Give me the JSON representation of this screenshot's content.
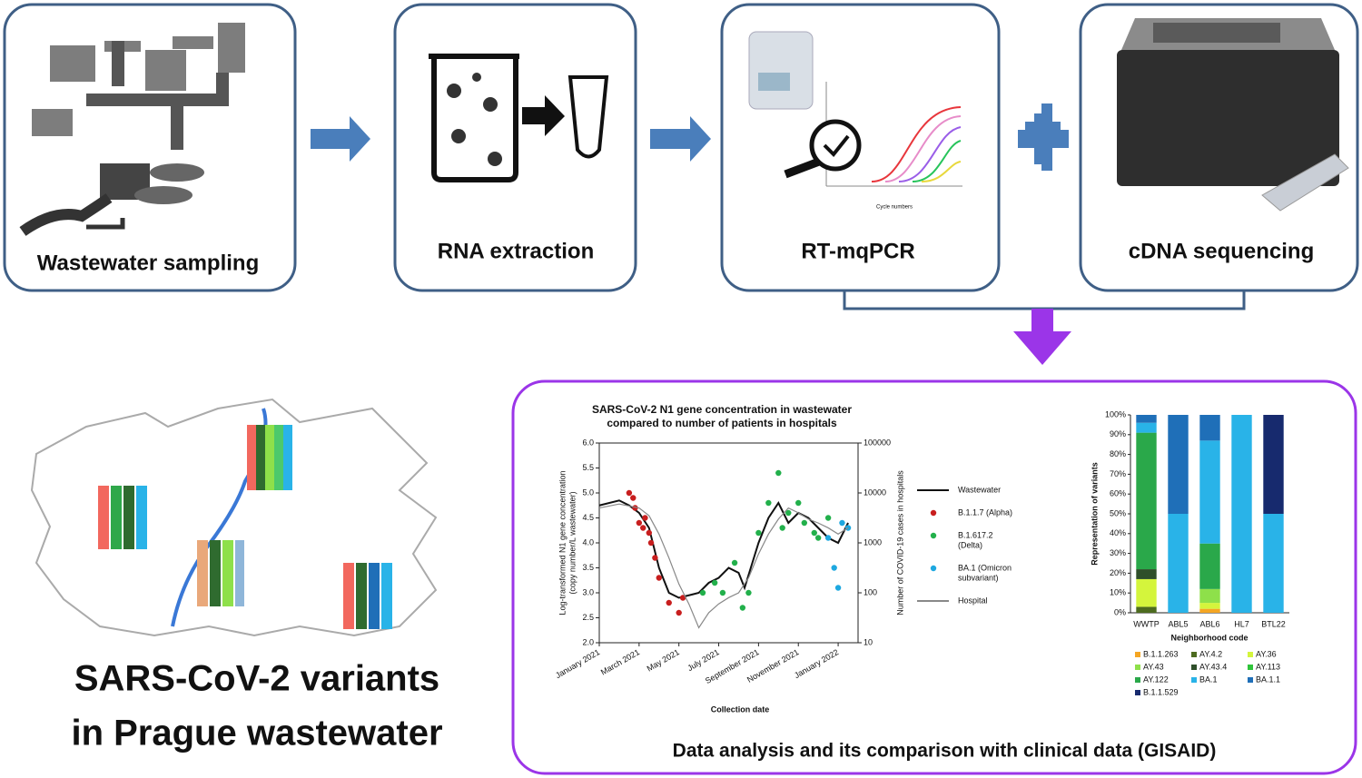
{
  "steps": [
    {
      "label": "Wastewater sampling"
    },
    {
      "label": "RNA extraction"
    },
    {
      "label": "RT-mqPCR"
    },
    {
      "label": "cDNA sequencing"
    }
  ],
  "qpcr_icon": {
    "x_label": "Cycle numbers"
  },
  "map": {
    "title_lines": [
      "SARS-CoV-2 variants",
      "in Prague wastewater"
    ]
  },
  "analysis": {
    "caption": "Data analysis and its comparison with clinical data (GISAID)",
    "line_chart": {
      "title_lines": [
        "SARS-CoV-2  N1 gene concentration in wastewater",
        "compared to number of patients in hospitals"
      ],
      "ylabel_lines": [
        "Log-transformed N1 gene concentration",
        "(copy number/L wastewater)"
      ],
      "y2label": "Number of COVID-19 cases in hospitals",
      "xlabel": "Collection date",
      "xlim": [
        0,
        13
      ],
      "xticks": [
        {
          "value": 0,
          "label": "January 2021"
        },
        {
          "value": 2,
          "label": "March 2021"
        },
        {
          "value": 4,
          "label": "May 2021"
        },
        {
          "value": 6,
          "label": "July 2021"
        },
        {
          "value": 8,
          "label": "September 2021"
        },
        {
          "value": 10,
          "label": "November 2021"
        },
        {
          "value": 12,
          "label": "January 2022"
        }
      ],
      "ylim": [
        2,
        6
      ],
      "yticks": [
        {
          "value": 2,
          "label": "2.0"
        },
        2.5,
        {
          "value": 3,
          "label": "3.0"
        },
        3.5,
        {
          "value": 4,
          "label": "4.0"
        },
        4.5,
        {
          "value": 5,
          "label": "5.0"
        },
        5.5,
        {
          "value": 6,
          "label": "6.0"
        }
      ],
      "y2lim": [
        10,
        100000
      ],
      "y2log": true,
      "y2ticks": [
        10,
        100,
        1000,
        10000,
        100000
      ],
      "series": [
        {
          "name_lines": [
            "Wastewater"
          ],
          "kind": "line",
          "color": "#111111",
          "x": [
            0,
            1,
            1.5,
            2,
            2.5,
            3,
            3.5,
            4,
            5,
            5.5,
            6,
            6.5,
            7,
            7.3,
            8,
            8.5,
            9,
            9.5,
            10,
            10.5,
            11,
            11.5,
            12,
            12.5
          ],
          "values": [
            4.75,
            4.85,
            4.75,
            4.6,
            4.3,
            3.5,
            3.0,
            2.9,
            3.0,
            3.2,
            3.3,
            3.5,
            3.4,
            3.1,
            4.0,
            4.5,
            4.8,
            4.4,
            4.6,
            4.5,
            4.3,
            4.1,
            4.0,
            4.4
          ]
        },
        {
          "name_lines": [
            "B.1.1.7 (Alpha)"
          ],
          "kind": "scatter",
          "color": "#c81e1e",
          "x": [
            1.5,
            1.7,
            1.8,
            2,
            2.2,
            2.3,
            2.5,
            2.6,
            2.8,
            3.0,
            3.5,
            4.0,
            4.2
          ],
          "values": [
            5.0,
            4.9,
            4.7,
            4.4,
            4.3,
            4.5,
            4.2,
            4.0,
            3.7,
            3.3,
            2.8,
            2.6,
            2.9
          ]
        },
        {
          "name_lines": [
            "B.1.617.2",
            "(Delta)"
          ],
          "kind": "scatter",
          "color": "#22b04b",
          "x": [
            5.2,
            5.8,
            6.2,
            6.8,
            7.2,
            7.5,
            8,
            8.5,
            9,
            9.2,
            9.5,
            10,
            10.3,
            10.8,
            11,
            11.5
          ],
          "values": [
            3.0,
            3.2,
            3.0,
            3.6,
            2.7,
            3.0,
            4.2,
            4.8,
            5.4,
            4.3,
            4.6,
            4.8,
            4.4,
            4.2,
            4.1,
            4.5
          ]
        },
        {
          "name_lines": [
            "BA.1 (Omicron",
            "subvariant)"
          ],
          "kind": "scatter",
          "color": "#1ea8e0",
          "x": [
            11.5,
            11.8,
            12,
            12.2,
            12.5
          ],
          "values": [
            4.1,
            3.5,
            3.1,
            4.4,
            4.3
          ]
        },
        {
          "name_lines": [
            "Hospital"
          ],
          "kind": "line",
          "axis": "y2",
          "color": "#888888",
          "x": [
            0,
            1,
            2,
            2.5,
            3,
            3.5,
            4,
            4.5,
            5,
            5.5,
            6,
            6.5,
            7,
            7.5,
            8,
            8.5,
            9,
            9.5,
            10,
            10.5,
            11,
            11.5,
            12,
            12.5
          ],
          "values": [
            5000,
            6000,
            5000,
            3500,
            1500,
            500,
            150,
            60,
            20,
            40,
            60,
            80,
            100,
            200,
            600,
            1500,
            3000,
            5000,
            4000,
            3000,
            2500,
            2000,
            1500,
            2000
          ]
        }
      ]
    },
    "bar_chart": {
      "ylabel": "Representation of variants",
      "xlabel": "Neighborhood code",
      "categories": [
        "WWTP",
        "ABL5",
        "ABL6",
        "HL7",
        "BTL22"
      ],
      "ylim": [
        0,
        100
      ],
      "yticks": [
        {
          "value": 0,
          "label": "0%"
        },
        {
          "value": 10,
          "label": "10%"
        },
        {
          "value": 20,
          "label": "20%"
        },
        {
          "value": 30,
          "label": "30%"
        },
        {
          "value": 40,
          "label": "40%"
        },
        {
          "value": 50,
          "label": "50%"
        },
        {
          "value": 60,
          "label": "60%"
        },
        {
          "value": 70,
          "label": "70%"
        },
        {
          "value": 80,
          "label": "80%"
        },
        {
          "value": 90,
          "label": "90%"
        },
        {
          "value": 100,
          "label": "100%"
        }
      ],
      "series": [
        {
          "name": "B.1.1.263",
          "color": "#f5a623",
          "values": [
            0,
            0,
            2,
            0,
            0
          ]
        },
        {
          "name": "AY.4.2",
          "color": "#4d6b1f",
          "values": [
            3,
            0,
            0,
            0,
            0
          ]
        },
        {
          "name": "AY.36",
          "color": "#d4f53c",
          "values": [
            14,
            0,
            3,
            0,
            0
          ]
        },
        {
          "name": "AY.43",
          "color": "#8ee04a",
          "values": [
            0,
            0,
            7,
            0,
            0
          ]
        },
        {
          "name": "AY.43.4",
          "color": "#2f4f2a",
          "values": [
            5,
            0,
            0,
            0,
            0
          ]
        },
        {
          "name": "AY.113",
          "color": "#2fc43a",
          "values": [
            0,
            0,
            0,
            0,
            0
          ]
        },
        {
          "name": "AY.122",
          "color": "#2aa84a",
          "values": [
            69,
            0,
            23,
            0,
            0
          ]
        },
        {
          "name": "BA.1",
          "color": "#29b3e8",
          "values": [
            5,
            50,
            52,
            100,
            50
          ]
        },
        {
          "name": "BA.1.1",
          "color": "#1f6fb8",
          "values": [
            4,
            50,
            13,
            0,
            0
          ]
        },
        {
          "name": "B.1.1.529",
          "color": "#172a6e",
          "values": [
            0,
            0,
            0,
            0,
            50
          ]
        }
      ]
    }
  }
}
